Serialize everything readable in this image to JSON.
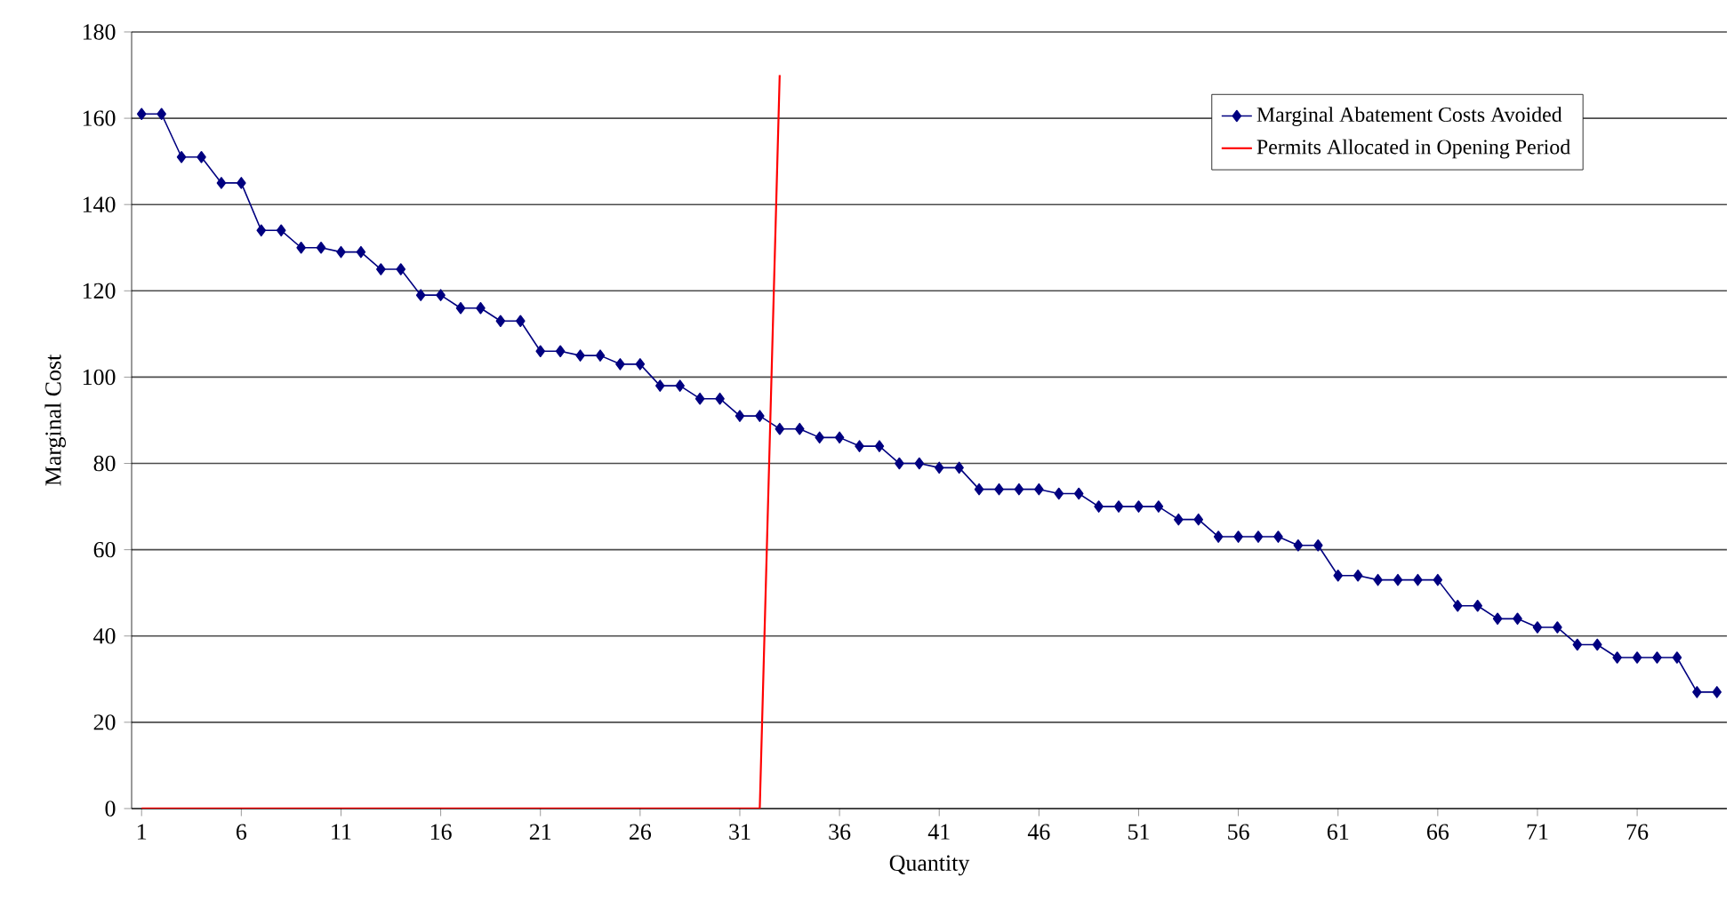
{
  "chart_data": {
    "type": "line",
    "xlabel": "Quantity",
    "ylabel": "Marginal Cost",
    "xlim": [
      0.5,
      80.5
    ],
    "ylim": [
      0,
      180
    ],
    "xticks": [
      1,
      6,
      11,
      16,
      21,
      26,
      31,
      36,
      41,
      46,
      51,
      56,
      61,
      66,
      71,
      76
    ],
    "yticks": [
      0,
      20,
      40,
      60,
      80,
      100,
      120,
      140,
      160,
      180
    ],
    "grid": "y",
    "legend": "top right",
    "series": [
      {
        "name": "Marginal Abatement Costs Avoided",
        "color": "#000080",
        "marker": "diamond",
        "x": [
          1,
          2,
          3,
          4,
          5,
          6,
          7,
          8,
          9,
          10,
          11,
          12,
          13,
          14,
          15,
          16,
          17,
          18,
          19,
          20,
          21,
          22,
          23,
          24,
          25,
          26,
          27,
          28,
          29,
          30,
          31,
          32,
          33,
          34,
          35,
          36,
          37,
          38,
          39,
          40,
          41,
          42,
          43,
          44,
          45,
          46,
          47,
          48,
          49,
          50,
          51,
          52,
          53,
          54,
          55,
          56,
          57,
          58,
          59,
          60,
          61,
          62,
          63,
          64,
          65,
          66,
          67,
          68,
          69,
          70,
          71,
          72,
          73,
          74,
          75,
          76,
          77,
          78,
          79,
          80
        ],
        "values": [
          161,
          161,
          151,
          151,
          145,
          145,
          134,
          134,
          130,
          130,
          129,
          129,
          125,
          125,
          119,
          119,
          116,
          116,
          113,
          113,
          106,
          106,
          105,
          105,
          103,
          103,
          98,
          98,
          95,
          95,
          91,
          91,
          88,
          88,
          86,
          86,
          84,
          84,
          80,
          80,
          79,
          79,
          74,
          74,
          74,
          74,
          73,
          73,
          70,
          70,
          70,
          70,
          67,
          67,
          63,
          63,
          63,
          63,
          61,
          61,
          54,
          54,
          53,
          53,
          53,
          53,
          47,
          47,
          44,
          44,
          42,
          42,
          38,
          38,
          35,
          35,
          35,
          35,
          27,
          27
        ]
      },
      {
        "name": "Permits Allocated in Opening Period",
        "color": "#ff0000",
        "marker": "none",
        "x": [
          1,
          2,
          3,
          4,
          5,
          6,
          7,
          8,
          9,
          10,
          11,
          12,
          13,
          14,
          15,
          16,
          17,
          18,
          19,
          20,
          21,
          22,
          23,
          24,
          25,
          26,
          27,
          28,
          29,
          30,
          31,
          32,
          33
        ],
        "values": [
          0,
          0,
          0,
          0,
          0,
          0,
          0,
          0,
          0,
          0,
          0,
          0,
          0,
          0,
          0,
          0,
          0,
          0,
          0,
          0,
          0,
          0,
          0,
          0,
          0,
          0,
          0,
          0,
          0,
          0,
          0,
          0,
          170
        ]
      }
    ]
  }
}
